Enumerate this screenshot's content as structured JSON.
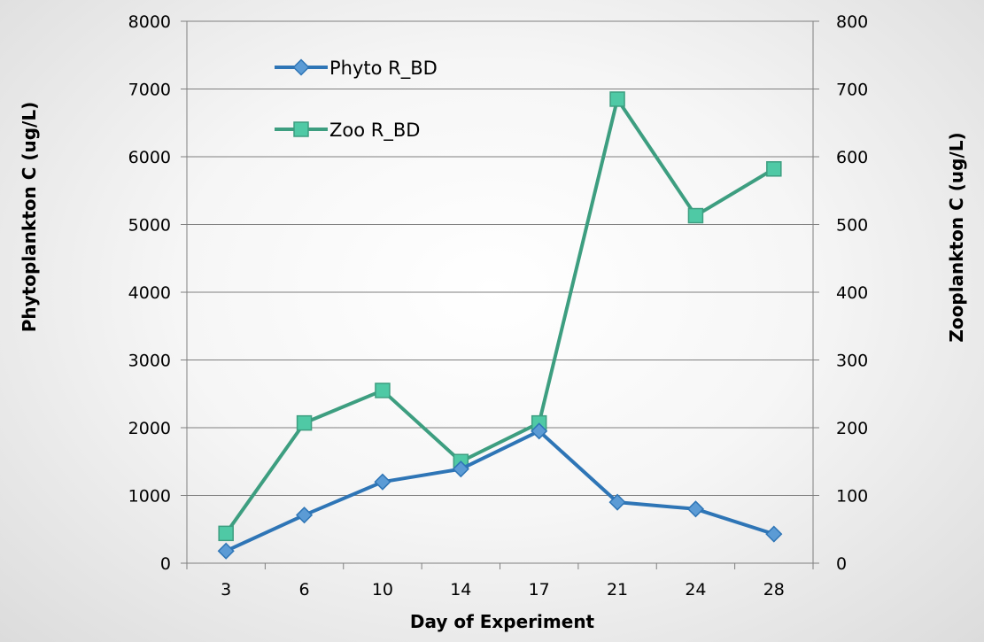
{
  "chart_data": {
    "type": "line",
    "categories": [
      "3",
      "6",
      "10",
      "14",
      "17",
      "21",
      "24",
      "28"
    ],
    "xlabel": "Day of Experiment",
    "ylabel": "Phytoplankton C (ug/L)",
    "y2label": "Zooplankton C (ug/L)",
    "ylim": [
      0,
      8000
    ],
    "y2lim": [
      0,
      800
    ],
    "yticks": [
      "0",
      "1000",
      "2000",
      "3000",
      "4000",
      "5000",
      "6000",
      "7000",
      "8000"
    ],
    "y2ticks": [
      "0",
      "100",
      "200",
      "300",
      "400",
      "500",
      "600",
      "700",
      "800"
    ],
    "grid": "horizontal",
    "legend_position": "top-left",
    "series": [
      {
        "name": "Phyto R_BD",
        "axis": "left",
        "marker": "diamond",
        "color": "#2e75b6",
        "marker_color": "#5b9bd5",
        "values": [
          180,
          710,
          1200,
          1390,
          1950,
          900,
          800,
          430
        ]
      },
      {
        "name": "Zoo R_BD",
        "axis": "right",
        "marker": "square",
        "color": "#3d9e80",
        "marker_color": "#4fc9a5",
        "values": [
          44,
          207,
          255,
          150,
          207,
          685,
          513,
          582
        ]
      }
    ]
  }
}
